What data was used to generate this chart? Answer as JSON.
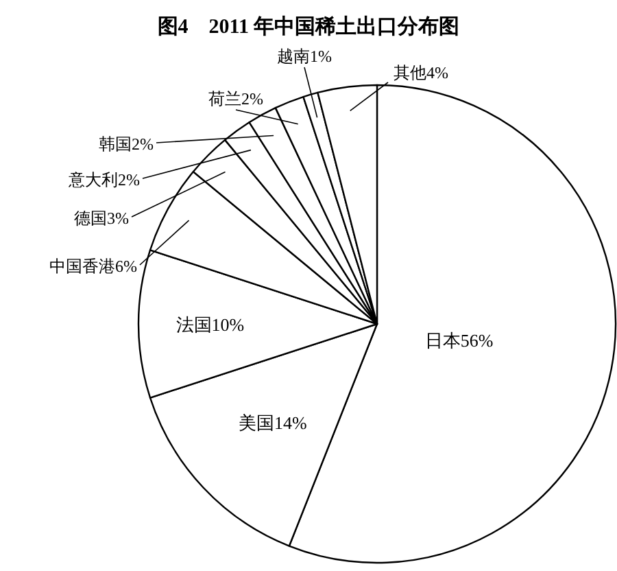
{
  "chart_data": {
    "type": "pie",
    "title": "图4　2011 年中国稀土出口分布图",
    "categories": [
      "日本",
      "美国",
      "法国",
      "中国香港",
      "德国",
      "意大利",
      "韩国",
      "荷兰",
      "越南",
      "其他"
    ],
    "values": [
      56,
      14,
      10,
      6,
      3,
      2,
      2,
      2,
      1,
      4
    ],
    "value_labels": [
      "56%",
      "14%",
      "10%",
      "6%",
      "3%",
      "2%",
      "2%",
      "2%",
      "1%",
      "4%"
    ],
    "colors": [
      "#ffffff",
      "#ffffff",
      "#ffffff",
      "#ffffff",
      "#ffffff",
      "#ffffff",
      "#ffffff",
      "#ffffff",
      "#ffffff",
      "#ffffff"
    ]
  }
}
